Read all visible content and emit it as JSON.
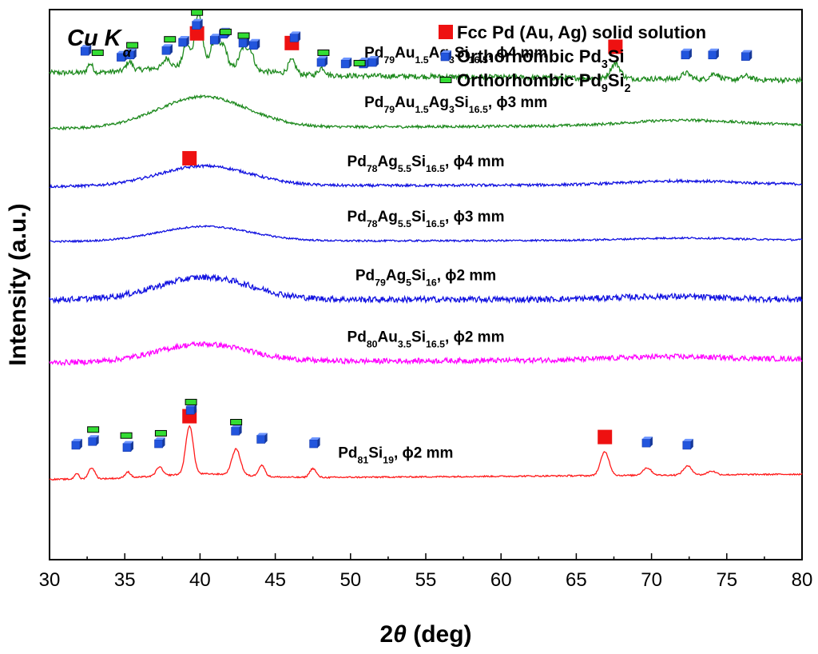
{
  "chart_data": {
    "type": "line",
    "title": "",
    "annotation": {
      "radiation": "Cu",
      "radiation_symbol": "K",
      "radiation_sub": "α"
    },
    "xlabel": {
      "prefix": "2",
      "symbol": "θ",
      "unit": " (deg)"
    },
    "ylabel": "Intensity (a.u.)",
    "xlim": [
      30,
      80
    ],
    "ylim": [
      0,
      7.4
    ],
    "xticks": [
      30,
      35,
      40,
      45,
      50,
      55,
      60,
      65,
      70,
      75,
      80
    ],
    "grid": false,
    "legend": {
      "placement": "top-right",
      "entries": [
        {
          "marker": "red-square",
          "parts": [
            [
              "Fcc Pd (Au, Ag) solid solution",
              ""
            ]
          ]
        },
        {
          "marker": "blue-cube",
          "parts": [
            [
              "Orthorhombic Pd",
              ""
            ],
            [
              "3",
              "sub"
            ],
            [
              "Si",
              ""
            ]
          ]
        },
        {
          "marker": "green-bar",
          "parts": [
            [
              "Orthorhombic Pd",
              ""
            ],
            [
              "9",
              "sub"
            ],
            [
              "Si",
              ""
            ],
            [
              "2",
              "sub"
            ]
          ]
        }
      ]
    },
    "series": [
      {
        "name": "Pd79Au1.5Ag3Si16.5, φ4 mm",
        "label_parts": [
          [
            "Pd",
            ""
          ],
          [
            "79",
            "sub"
          ],
          [
            "Au",
            ""
          ],
          [
            "1.5",
            "sub"
          ],
          [
            "Ag",
            ""
          ],
          [
            "3",
            "sub"
          ],
          [
            "Si",
            ""
          ],
          [
            "16.5",
            "sub"
          ],
          [
            ", ϕ4 mm",
            ""
          ]
        ],
        "label_x": 57,
        "color": "#1e8a1e",
        "noise": 0.035,
        "baseline_start": 6.55,
        "baseline_end": 6.45,
        "hump": {
          "center": 40,
          "width": 4.5,
          "height": 0.12
        },
        "peaks": [
          [
            32.7,
            0.12,
            0.25
          ],
          [
            35.3,
            0.12,
            0.3
          ],
          [
            37.8,
            0.12,
            0.3
          ],
          [
            39.1,
            0.3,
            0.3
          ],
          [
            39.9,
            0.7,
            0.35
          ],
          [
            41.0,
            0.35,
            0.4
          ],
          [
            41.6,
            0.25,
            0.3
          ],
          [
            42.9,
            0.28,
            0.4
          ],
          [
            43.4,
            0.2,
            0.3
          ],
          [
            46.1,
            0.18,
            0.35
          ],
          [
            48.1,
            0.1,
            0.3
          ],
          [
            67.6,
            0.2,
            0.45
          ],
          [
            72.3,
            0.08,
            0.4
          ],
          [
            74.2,
            0.08,
            0.4
          ],
          [
            76.3,
            0.05,
            0.4
          ]
        ]
      },
      {
        "name": "Pd79Au1.5Ag3Si16.5, φ3 mm",
        "label_parts": [
          [
            "Pd",
            ""
          ],
          [
            "79",
            "sub"
          ],
          [
            "Au",
            ""
          ],
          [
            "1.5",
            "sub"
          ],
          [
            "Ag",
            ""
          ],
          [
            "3",
            "sub"
          ],
          [
            "Si",
            ""
          ],
          [
            "16.5",
            "sub"
          ],
          [
            ", ϕ3 mm",
            ""
          ]
        ],
        "label_x": 57,
        "color": "#1e8a1e",
        "noise": 0.018,
        "baseline_start": 5.8,
        "baseline_end": 5.85,
        "hump": {
          "center": 40.2,
          "width": 4.2,
          "height": 0.42
        },
        "hump2": {
          "center": 72,
          "width": 5,
          "height": 0.07
        },
        "peaks": []
      },
      {
        "name": "Pd78Ag5.5Si16.5, φ4 mm",
        "label_parts": [
          [
            "Pd",
            ""
          ],
          [
            "78",
            "sub"
          ],
          [
            "Ag",
            ""
          ],
          [
            "5.5",
            "sub"
          ],
          [
            "Si",
            ""
          ],
          [
            "16.5",
            "sub"
          ],
          [
            ", ϕ4 mm",
            ""
          ]
        ],
        "label_x": 55,
        "color": "#1010e0",
        "noise": 0.018,
        "baseline_start": 5.02,
        "baseline_end": 5.05,
        "hump": {
          "center": 40.3,
          "width": 4.3,
          "height": 0.27
        },
        "hump2": {
          "center": 72,
          "width": 5,
          "height": 0.05
        },
        "peaks": []
      },
      {
        "name": "Pd78Ag5.5Si16.5, φ3 mm",
        "label_parts": [
          [
            "Pd",
            ""
          ],
          [
            "78",
            "sub"
          ],
          [
            "Ag",
            ""
          ],
          [
            "5.5",
            "sub"
          ],
          [
            "Si",
            ""
          ],
          [
            "16.5",
            "sub"
          ],
          [
            ", ϕ3 mm",
            ""
          ]
        ],
        "label_x": 55,
        "color": "#1010e0",
        "noise": 0.012,
        "baseline_start": 4.28,
        "baseline_end": 4.3,
        "hump": {
          "center": 40.3,
          "width": 4.3,
          "height": 0.2
        },
        "hump2": {
          "center": 72,
          "width": 5,
          "height": 0.03
        },
        "peaks": []
      },
      {
        "name": "Pd79Ag5Si16, φ2 mm",
        "label_parts": [
          [
            "Pd",
            ""
          ],
          [
            "79",
            "sub"
          ],
          [
            "Ag",
            ""
          ],
          [
            "5",
            "sub"
          ],
          [
            "Si",
            ""
          ],
          [
            "16",
            "sub"
          ],
          [
            ", ϕ2 mm",
            ""
          ]
        ],
        "label_x": 55,
        "color": "#1010e0",
        "noise": 0.04,
        "baseline_start": 3.5,
        "baseline_end": 3.5,
        "hump": {
          "center": 40.3,
          "width": 4.3,
          "height": 0.3
        },
        "hump2": {
          "center": 71,
          "width": 5,
          "height": 0.04
        },
        "peaks": []
      },
      {
        "name": "Pd80Au3.5Si16.5, φ2 mm",
        "label_parts": [
          [
            "Pd",
            ""
          ],
          [
            "80",
            "sub"
          ],
          [
            "Au",
            ""
          ],
          [
            "3.5",
            "sub"
          ],
          [
            "Si",
            ""
          ],
          [
            "16.5",
            "sub"
          ],
          [
            ", ϕ2 mm",
            ""
          ]
        ],
        "label_x": 55,
        "color": "#ff00ff",
        "noise": 0.035,
        "baseline_start": 2.65,
        "baseline_end": 2.7,
        "hump": {
          "center": 40.2,
          "width": 4.3,
          "height": 0.24
        },
        "hump2": {
          "center": 71,
          "width": 5,
          "height": 0.04
        },
        "peaks": []
      },
      {
        "name": "Pd81Si19, φ2 mm",
        "label_parts": [
          [
            "Pd",
            ""
          ],
          [
            "81",
            "sub"
          ],
          [
            "Si",
            ""
          ],
          [
            "19",
            "sub"
          ],
          [
            ", ϕ2 mm",
            ""
          ]
        ],
        "label_x": 53,
        "color": "#ff1a1a",
        "noise": 0.01,
        "baseline_start": 1.08,
        "baseline_end": 1.15,
        "hump": {
          "center": 40,
          "width": 4,
          "height": 0.06
        },
        "peaks": [
          [
            31.8,
            0.08,
            0.2
          ],
          [
            32.8,
            0.15,
            0.3
          ],
          [
            35.2,
            0.08,
            0.25
          ],
          [
            37.3,
            0.12,
            0.3
          ],
          [
            39.3,
            0.65,
            0.35
          ],
          [
            42.4,
            0.35,
            0.4
          ],
          [
            44.1,
            0.15,
            0.3
          ],
          [
            47.5,
            0.12,
            0.3
          ],
          [
            66.9,
            0.32,
            0.4
          ],
          [
            69.7,
            0.1,
            0.4
          ],
          [
            72.4,
            0.12,
            0.4
          ],
          [
            74.0,
            0.05,
            0.4
          ]
        ]
      }
    ],
    "phase_markers": [
      {
        "phase": "Fcc Pd (Au, Ag) solid solution",
        "x": 39.8,
        "y": 7.08
      },
      {
        "phase": "Fcc Pd (Au, Ag) solid solution",
        "x": 46.1,
        "y": 6.95
      },
      {
        "phase": "Fcc Pd (Au, Ag) solid solution",
        "x": 67.6,
        "y": 6.9
      },
      {
        "phase": "Fcc Pd (Au, Ag) solid solution",
        "x": 39.3,
        "y": 5.4
      },
      {
        "phase": "Fcc Pd (Au, Ag) solid solution",
        "x": 39.3,
        "y": 1.93
      },
      {
        "phase": "Fcc Pd (Au, Ag) solid solution",
        "x": 66.9,
        "y": 1.65
      },
      {
        "phase": "Orthorhombic Pd3Si",
        "x": 32.4,
        "y": 6.85
      },
      {
        "phase": "Orthorhombic Pd3Si",
        "x": 34.8,
        "y": 6.77
      },
      {
        "phase": "Orthorhombic Pd3Si",
        "x": 35.4,
        "y": 6.8
      },
      {
        "phase": "Orthorhombic Pd3Si",
        "x": 37.8,
        "y": 6.86
      },
      {
        "phase": "Orthorhombic Pd3Si",
        "x": 38.9,
        "y": 6.97
      },
      {
        "phase": "Orthorhombic Pd3Si",
        "x": 39.8,
        "y": 7.2
      },
      {
        "phase": "Orthorhombic Pd3Si",
        "x": 41.0,
        "y": 7.0
      },
      {
        "phase": "Orthorhombic Pd3Si",
        "x": 41.6,
        "y": 7.08
      },
      {
        "phase": "Orthorhombic Pd3Si",
        "x": 42.9,
        "y": 6.96
      },
      {
        "phase": "Orthorhombic Pd3Si",
        "x": 43.6,
        "y": 6.93
      },
      {
        "phase": "Orthorhombic Pd3Si",
        "x": 46.3,
        "y": 7.03
      },
      {
        "phase": "Orthorhombic Pd3Si",
        "x": 48.1,
        "y": 6.7
      },
      {
        "phase": "Orthorhombic Pd3Si",
        "x": 49.7,
        "y": 6.68
      },
      {
        "phase": "Orthorhombic Pd3Si",
        "x": 50.9,
        "y": 6.68
      },
      {
        "phase": "Orthorhombic Pd3Si",
        "x": 51.5,
        "y": 6.7
      },
      {
        "phase": "Orthorhombic Pd3Si",
        "x": 72.3,
        "y": 6.8
      },
      {
        "phase": "Orthorhombic Pd3Si",
        "x": 74.1,
        "y": 6.8
      },
      {
        "phase": "Orthorhombic Pd3Si",
        "x": 76.3,
        "y": 6.78
      },
      {
        "phase": "Orthorhombic Pd3Si",
        "x": 31.8,
        "y": 1.55
      },
      {
        "phase": "Orthorhombic Pd3Si",
        "x": 32.9,
        "y": 1.6
      },
      {
        "phase": "Orthorhombic Pd3Si",
        "x": 35.2,
        "y": 1.52
      },
      {
        "phase": "Orthorhombic Pd3Si",
        "x": 37.3,
        "y": 1.57
      },
      {
        "phase": "Orthorhombic Pd3Si",
        "x": 39.4,
        "y": 2.02
      },
      {
        "phase": "Orthorhombic Pd3Si",
        "x": 42.4,
        "y": 1.74
      },
      {
        "phase": "Orthorhombic Pd3Si",
        "x": 44.1,
        "y": 1.63
      },
      {
        "phase": "Orthorhombic Pd3Si",
        "x": 47.6,
        "y": 1.57
      },
      {
        "phase": "Orthorhombic Pd3Si",
        "x": 69.7,
        "y": 1.58
      },
      {
        "phase": "Orthorhombic Pd3Si",
        "x": 72.4,
        "y": 1.55
      },
      {
        "phase": "Orthorhombic Pd9Si2",
        "x": 33.2,
        "y": 6.82
      },
      {
        "phase": "Orthorhombic Pd9Si2",
        "x": 35.5,
        "y": 6.92
      },
      {
        "phase": "Orthorhombic Pd9Si2",
        "x": 38.0,
        "y": 7.0
      },
      {
        "phase": "Orthorhombic Pd9Si2",
        "x": 39.8,
        "y": 7.36
      },
      {
        "phase": "Orthorhombic Pd9Si2",
        "x": 41.7,
        "y": 7.1
      },
      {
        "phase": "Orthorhombic Pd9Si2",
        "x": 42.9,
        "y": 7.05
      },
      {
        "phase": "Orthorhombic Pd9Si2",
        "x": 48.2,
        "y": 6.82
      },
      {
        "phase": "Orthorhombic Pd9Si2",
        "x": 50.6,
        "y": 6.68
      },
      {
        "phase": "Orthorhombic Pd9Si2",
        "x": 32.9,
        "y": 1.75
      },
      {
        "phase": "Orthorhombic Pd9Si2",
        "x": 35.1,
        "y": 1.67
      },
      {
        "phase": "Orthorhombic Pd9Si2",
        "x": 37.4,
        "y": 1.7
      },
      {
        "phase": "Orthorhombic Pd9Si2",
        "x": 39.4,
        "y": 2.12
      },
      {
        "phase": "Orthorhombic Pd9Si2",
        "x": 42.4,
        "y": 1.85
      }
    ]
  }
}
